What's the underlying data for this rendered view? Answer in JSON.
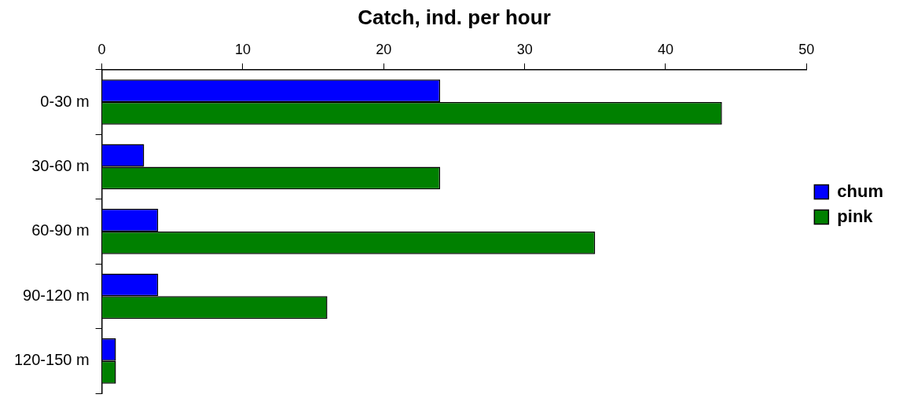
{
  "chart_data": {
    "type": "bar",
    "orientation": "horizontal",
    "xlabel": "Catch, ind. per hour",
    "categories": [
      "0-30 m",
      "30-60 m",
      "60-90 m",
      "90-120 m",
      "120-150 m"
    ],
    "series": [
      {
        "name": "chum",
        "color": "#0000ff",
        "values": [
          24,
          3,
          4,
          4,
          1
        ]
      },
      {
        "name": "pink",
        "color": "#008000",
        "values": [
          44,
          24,
          35,
          16,
          1
        ]
      }
    ],
    "xlim": [
      0,
      50
    ],
    "xticks": [
      0,
      10,
      20,
      30,
      40,
      50
    ],
    "grid": false,
    "legend": "right"
  }
}
